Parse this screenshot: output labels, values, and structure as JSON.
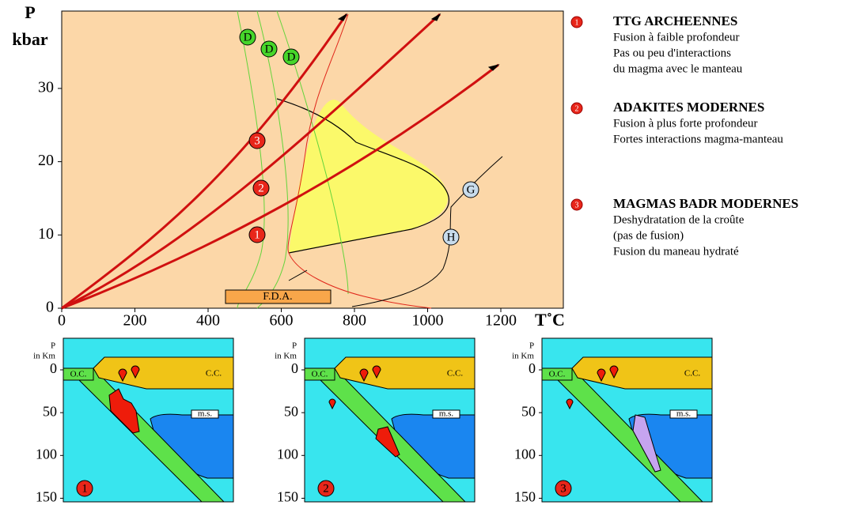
{
  "diagram": {
    "y_title": "P",
    "y_unit": "kbar",
    "x_title": "T˚C",
    "x_ticks": [
      0,
      200,
      400,
      600,
      800,
      1000,
      1200
    ],
    "y_ticks": [
      0,
      10,
      20,
      30
    ],
    "geotherm_labels": [
      "1",
      "2",
      "3"
    ],
    "dehydration_labels": [
      "D",
      "D",
      "D"
    ],
    "melting_labels": [
      "G",
      "H"
    ],
    "fda_label": "F.D.A."
  },
  "legend": [
    {
      "number": "1",
      "title": "TTG ARCHEENNES",
      "lines": [
        "Fusion à faible profondeur",
        "Pas ou peu d'interactions",
        "du magma avec le manteau"
      ]
    },
    {
      "number": "2",
      "title": "ADAKITES MODERNES",
      "lines": [
        "Fusion à plus forte profondeur",
        "Fortes interactions magma-manteau"
      ]
    },
    {
      "number": "3",
      "title": "MAGMAS BADR MODERNES",
      "lines": [
        "Deshydratation de la croûte",
        "(pas de fusion)",
        "Fusion du maneau hydraté"
      ]
    }
  ],
  "panels": [
    {
      "number": "1",
      "p_label": "P",
      "depth_label": "in Km",
      "depth_ticks": [
        0,
        50,
        100,
        150
      ],
      "oceanic_crust": "O.C.",
      "continental_crust": "C.C.",
      "mantle_label": "m.s."
    },
    {
      "number": "2",
      "p_label": "P",
      "depth_label": "in Km",
      "depth_ticks": [
        0,
        50,
        100,
        150
      ],
      "oceanic_crust": "O.C.",
      "continental_crust": "C.C.",
      "mantle_label": "m.s."
    },
    {
      "number": "3",
      "p_label": "P",
      "depth_label": "in Km",
      "depth_ticks": [
        0,
        50,
        100,
        150
      ],
      "oceanic_crust": "O.C.",
      "continental_crust": "C.C.",
      "mantle_label": "m.s."
    }
  ]
}
